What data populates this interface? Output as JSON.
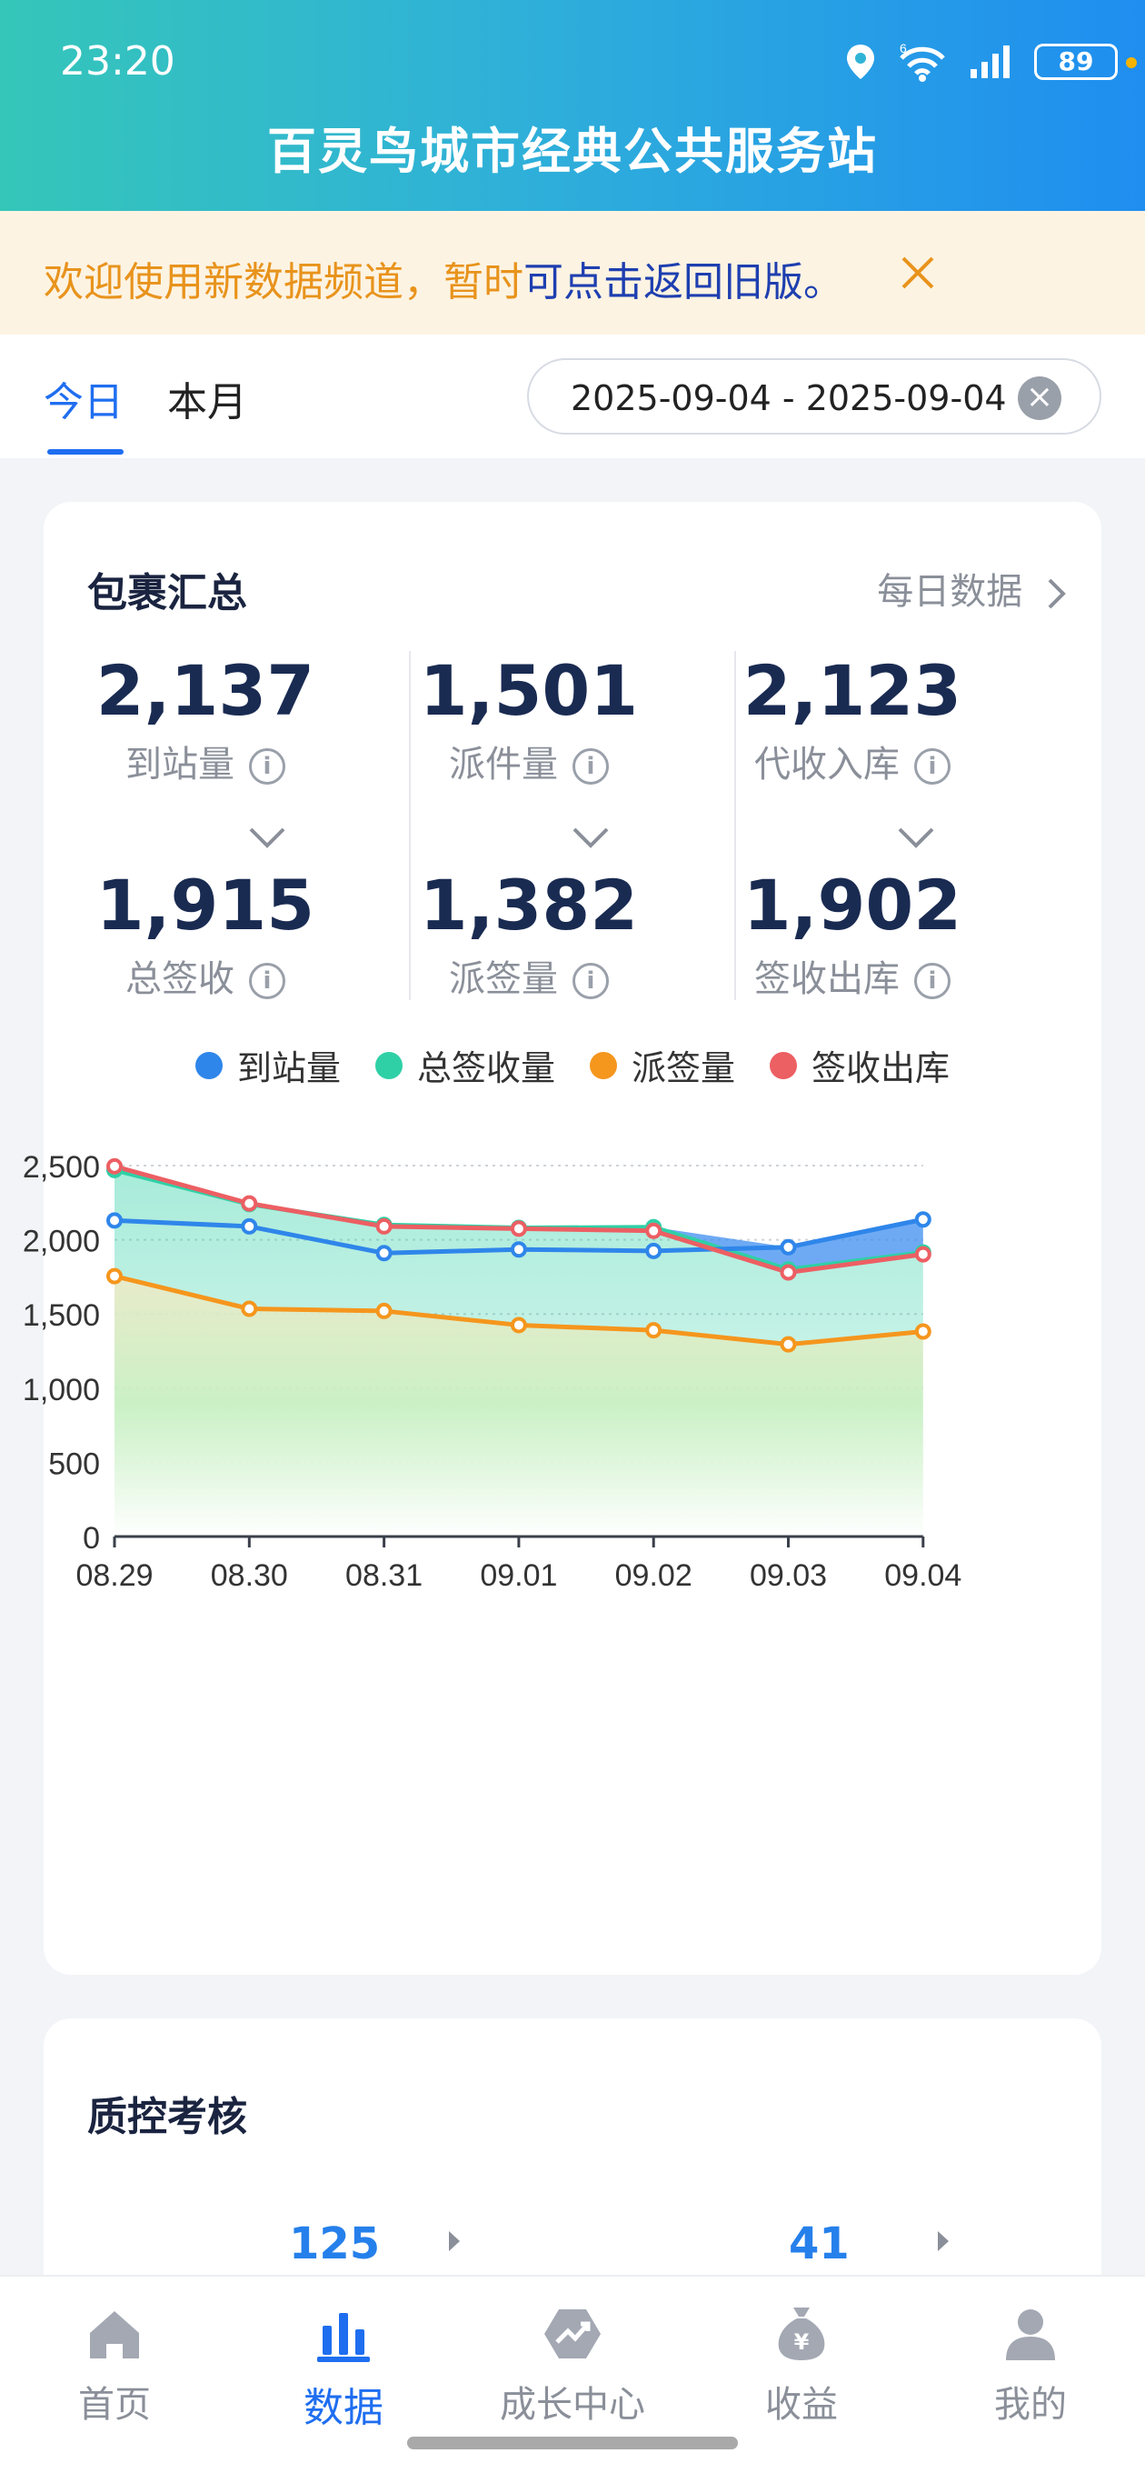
{
  "status": {
    "time": "23:20",
    "battery": "89",
    "network": "6"
  },
  "app": {
    "title": "百灵鸟城市经典公共服务站"
  },
  "notice": {
    "text": "欢迎使用新数据频道，暂时",
    "link": "可点击返回旧版。"
  },
  "tabs": [
    {
      "label": "今日",
      "active": true
    },
    {
      "label": "本月",
      "active": false
    }
  ],
  "date_range": "2025-09-04 - 2025-09-04",
  "summary": {
    "title": "包裹汇总",
    "more": "每日数据",
    "metrics": [
      {
        "top_value": "2,137",
        "top_label": "到站量",
        "bottom_value": "1,915",
        "bottom_label": "总签收"
      },
      {
        "top_value": "1,501",
        "top_label": "派件量",
        "bottom_value": "1,382",
        "bottom_label": "派签量"
      },
      {
        "top_value": "2,123",
        "top_label": "代收入库",
        "bottom_value": "1,902",
        "bottom_label": "签收出库"
      }
    ]
  },
  "chart_data": {
    "type": "area",
    "categories": [
      "08.29",
      "08.30",
      "08.31",
      "09.01",
      "09.02",
      "09.03",
      "09.04"
    ],
    "ylim": [
      0,
      2500
    ],
    "yticks": [
      0,
      500,
      1000,
      1500,
      2000,
      2500
    ],
    "ytick_labels": [
      "0",
      "500",
      "1,000",
      "1,500",
      "2,000",
      "2,500"
    ],
    "grid": true,
    "legend_position": "top",
    "series": [
      {
        "name": "到站量",
        "color": "#2f86ea",
        "fill": false,
        "values": [
          2130,
          2090,
          1910,
          1935,
          1925,
          1950,
          2137
        ]
      },
      {
        "name": "总签收量",
        "color": "#2fd0a6",
        "fill": true,
        "values": [
          2470,
          2240,
          2100,
          2080,
          2085,
          1800,
          1915
        ]
      },
      {
        "name": "派签量",
        "color": "#f5961d",
        "fill": true,
        "values": [
          1755,
          1535,
          1520,
          1425,
          1390,
          1295,
          1382
        ]
      },
      {
        "name": "签收出库",
        "color": "#ec5f63",
        "fill": false,
        "values": [
          2495,
          2245,
          2090,
          2075,
          2060,
          1780,
          1902
        ]
      }
    ]
  },
  "qc": {
    "title": "质控考核",
    "items": [
      {
        "value": "125"
      },
      {
        "value": "41"
      }
    ]
  },
  "nav": [
    {
      "label": "首页",
      "icon": "home-icon",
      "active": false
    },
    {
      "label": "数据",
      "icon": "bar-chart-icon",
      "active": true
    },
    {
      "label": "成长中心",
      "icon": "growth-icon",
      "active": false
    },
    {
      "label": "收益",
      "icon": "money-bag-icon",
      "active": false
    },
    {
      "label": "我的",
      "icon": "user-icon",
      "active": false
    }
  ]
}
